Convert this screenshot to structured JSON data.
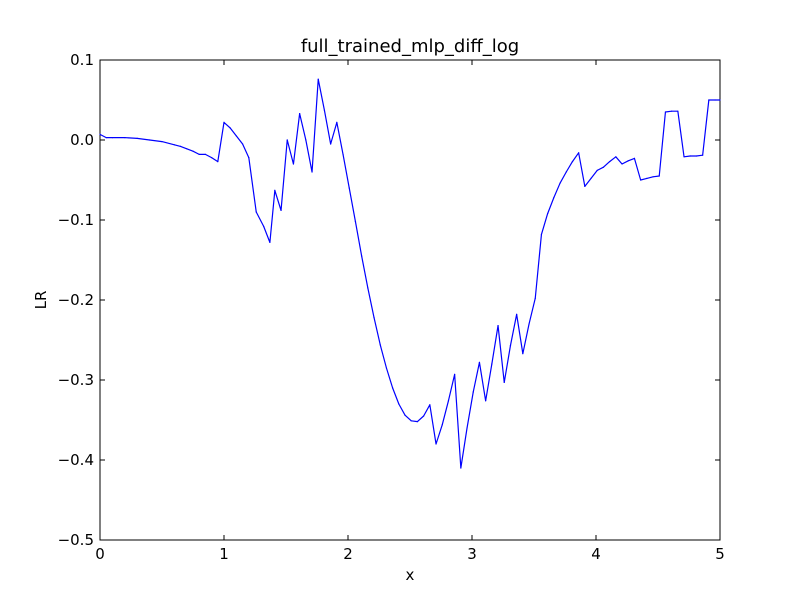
{
  "chart_data": {
    "type": "line",
    "title": "full_trained_mlp_diff_log",
    "xlabel": "x",
    "ylabel": "LR",
    "xlim": [
      0,
      5
    ],
    "ylim": [
      -0.5,
      0.1
    ],
    "xticks": [
      0,
      1,
      2,
      3,
      4,
      5
    ],
    "xtick_labels": [
      "0",
      "1",
      "2",
      "3",
      "4",
      "5"
    ],
    "yticks": [
      0.1,
      0.0,
      -0.1,
      -0.2,
      -0.3,
      -0.4,
      -0.5
    ],
    "ytick_labels": [
      "0.1",
      "0.0",
      "−0.1",
      "−0.2",
      "−0.3",
      "−0.4",
      "−0.5"
    ],
    "grid": false,
    "color": "#0000ff",
    "series": [
      {
        "x": [
          0.0,
          0.05,
          0.1,
          0.2,
          0.3,
          0.4,
          0.5,
          0.6,
          0.65,
          0.7,
          0.75,
          0.8,
          0.85,
          0.9,
          0.95,
          1.0,
          1.05,
          1.1,
          1.15,
          1.2,
          1.26,
          1.32,
          1.37,
          1.41,
          1.46,
          1.51,
          1.56,
          1.61,
          1.66,
          1.71,
          1.76,
          1.81,
          1.86,
          1.91,
          1.96,
          2.01,
          2.06,
          2.11,
          2.16,
          2.21,
          2.26,
          2.31,
          2.36,
          2.41,
          2.46,
          2.51,
          2.56,
          2.61,
          2.66,
          2.71,
          2.76,
          2.81,
          2.86,
          2.91,
          2.96,
          3.01,
          3.06,
          3.11,
          3.16,
          3.21,
          3.26,
          3.31,
          3.36,
          3.41,
          3.46,
          3.51,
          3.56,
          3.61,
          3.66,
          3.71,
          3.76,
          3.81,
          3.86,
          3.91,
          3.96,
          4.01,
          4.06,
          4.11,
          4.16,
          4.21,
          4.26,
          4.31,
          4.36,
          4.41,
          4.46,
          4.51,
          4.56,
          4.61,
          4.66,
          4.71,
          4.76,
          4.81,
          4.86,
          4.91,
          4.96,
          5.0
        ],
        "y": [
          0.007,
          0.003,
          0.003,
          0.003,
          0.002,
          0.0,
          -0.002,
          -0.006,
          -0.008,
          -0.011,
          -0.014,
          -0.018,
          -0.018,
          -0.022,
          -0.027,
          0.022,
          0.015,
          0.005,
          -0.005,
          -0.022,
          -0.09,
          -0.108,
          -0.128,
          -0.063,
          -0.088,
          0.0,
          -0.03,
          0.033,
          0.0,
          -0.04,
          0.076,
          0.037,
          -0.005,
          0.022,
          -0.018,
          -0.06,
          -0.102,
          -0.145,
          -0.185,
          -0.222,
          -0.256,
          -0.285,
          -0.31,
          -0.33,
          -0.344,
          -0.351,
          -0.352,
          -0.345,
          -0.331,
          -0.38,
          -0.356,
          -0.326,
          -0.293,
          -0.41,
          -0.36,
          -0.315,
          -0.278,
          -0.326,
          -0.28,
          -0.232,
          -0.303,
          -0.257,
          -0.218,
          -0.267,
          -0.23,
          -0.198,
          -0.118,
          -0.092,
          -0.072,
          -0.054,
          -0.04,
          -0.027,
          -0.016,
          -0.058,
          -0.048,
          -0.038,
          -0.034,
          -0.027,
          -0.021,
          -0.03,
          -0.026,
          -0.023,
          -0.05,
          -0.048,
          -0.046,
          -0.045,
          0.035,
          0.036,
          0.036,
          -0.021,
          -0.02,
          -0.02,
          -0.019,
          0.05,
          0.05,
          0.05
        ]
      }
    ]
  }
}
